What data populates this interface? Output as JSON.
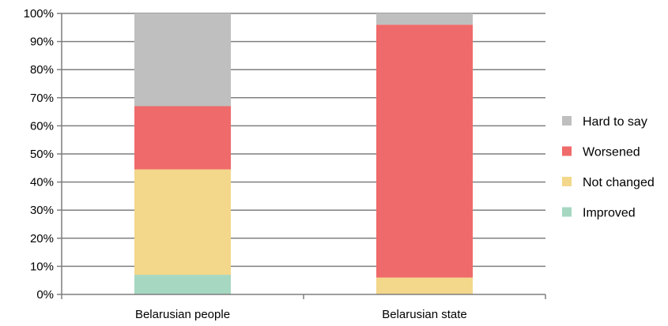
{
  "chart_data": {
    "type": "bar",
    "stacked": true,
    "normalized": true,
    "categories": [
      "Belarusian people",
      "Belarusian state"
    ],
    "series": [
      {
        "name": "Improved",
        "values": [
          7,
          0
        ],
        "color": "#a6d7c1"
      },
      {
        "name": "Not changed",
        "values": [
          37.5,
          6
        ],
        "color": "#f3d78a"
      },
      {
        "name": "Worsened",
        "values": [
          22.5,
          90
        ],
        "color": "#ef6a6a"
      },
      {
        "name": "Hard to say",
        "values": [
          33,
          4
        ],
        "color": "#bfbfbf"
      }
    ],
    "y_ticks": [
      "0%",
      "10%",
      "20%",
      "30%",
      "40%",
      "50%",
      "60%",
      "70%",
      "80%",
      "90%",
      "100%"
    ],
    "ylim": [
      0,
      100
    ],
    "grid": true,
    "gridline_color": "#7f7f7f",
    "legend_position": "right",
    "legend_order": [
      "Hard to say",
      "Worsened",
      "Not changed",
      "Improved"
    ]
  }
}
